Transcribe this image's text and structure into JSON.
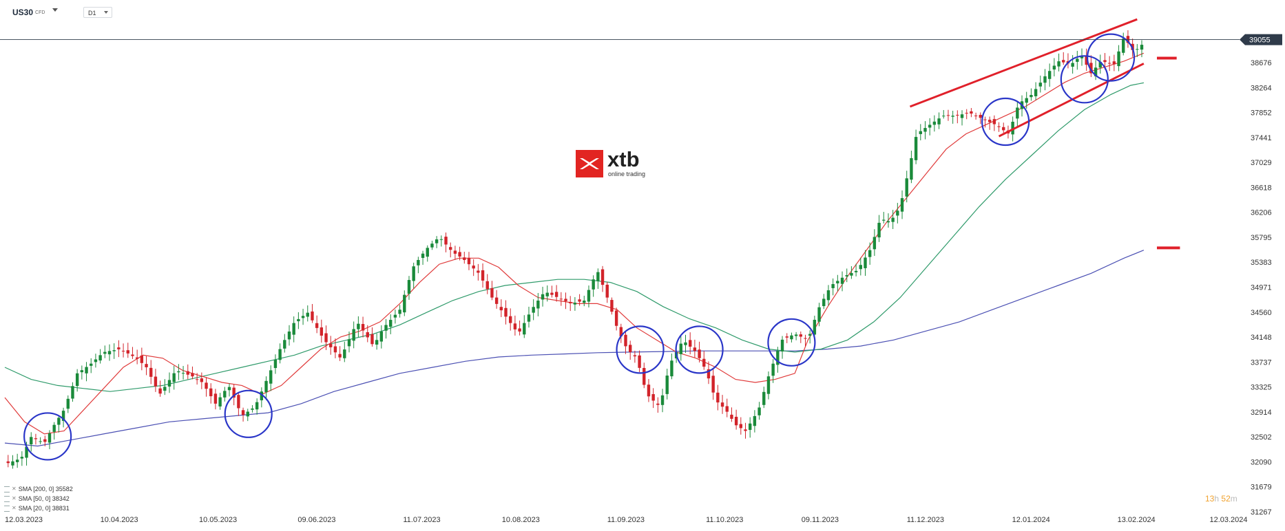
{
  "toolbar": {
    "symbol": "US30",
    "symbol_type": "CFD",
    "interval": "D1"
  },
  "logo": {
    "brand": "xtb",
    "tagline": "online trading"
  },
  "timer": {
    "hours": "13",
    "hours_unit": "h",
    "minutes": "52",
    "minutes_unit": "m"
  },
  "legend": [
    {
      "label": "SMA [200, 0] 35582"
    },
    {
      "label": "SMA [50, 0] 38342"
    },
    {
      "label": "SMA [20, 0] 38831"
    }
  ],
  "colors": {
    "bull": "#1a8a3a",
    "bear": "#d2232a",
    "sma200": "#4a4fb3",
    "sma50": "#2e9a6a",
    "sma20": "#e03a3a",
    "channel": "#e0202a",
    "circle": "#2a36c8",
    "price_tag_bg": "#2f3b4a",
    "price_line": "#2f3b4a"
  },
  "chart_data": {
    "type": "candlestick",
    "symbol": "US30",
    "timeframe": "D1",
    "current_price": 39055,
    "y_ticks": [
      38676,
      38264,
      37852,
      37441,
      37029,
      36618,
      36206,
      35795,
      35383,
      34971,
      34560,
      34148,
      33737,
      33325,
      32914,
      32502,
      32090,
      31679,
      31267
    ],
    "y_scale": {
      "low": 31267,
      "high": 38676,
      "step": 411.6
    },
    "x_ticks": [
      "12.03.2023",
      "10.04.2023",
      "10.05.2023",
      "09.06.2023",
      "11.07.2023",
      "10.08.2023",
      "11.09.2023",
      "11.10.2023",
      "09.11.2023",
      "11.12.2023",
      "12.01.2024",
      "13.02.2024",
      "12.03.2024"
    ],
    "x_tick_days": [
      0,
      29,
      59,
      89,
      121,
      151,
      183,
      213,
      242,
      274,
      306,
      338,
      366
    ],
    "close_path": [
      [
        0,
        32050
      ],
      [
        5,
        32150
      ],
      [
        8,
        32500
      ],
      [
        12,
        32400
      ],
      [
        15,
        32700
      ],
      [
        18,
        32950
      ],
      [
        22,
        33550
      ],
      [
        26,
        33700
      ],
      [
        30,
        33900
      ],
      [
        35,
        33950
      ],
      [
        40,
        33800
      ],
      [
        43,
        33650
      ],
      [
        47,
        33200
      ],
      [
        52,
        33600
      ],
      [
        57,
        33500
      ],
      [
        60,
        33400
      ],
      [
        64,
        33050
      ],
      [
        68,
        33350
      ],
      [
        72,
        32850
      ],
      [
        76,
        33000
      ],
      [
        80,
        33500
      ],
      [
        84,
        34000
      ],
      [
        88,
        34400
      ],
      [
        92,
        34550
      ],
      [
        97,
        34100
      ],
      [
        102,
        33800
      ],
      [
        107,
        34400
      ],
      [
        112,
        34000
      ],
      [
        115,
        34300
      ],
      [
        120,
        34600
      ],
      [
        124,
        35300
      ],
      [
        128,
        35600
      ],
      [
        132,
        35800
      ],
      [
        136,
        35550
      ],
      [
        139,
        35450
      ],
      [
        144,
        35200
      ],
      [
        148,
        34800
      ],
      [
        152,
        34500
      ],
      [
        156,
        34200
      ],
      [
        160,
        34600
      ],
      [
        164,
        34900
      ],
      [
        168,
        34800
      ],
      [
        172,
        34700
      ],
      [
        176,
        34750
      ],
      [
        180,
        35250
      ],
      [
        183,
        34800
      ],
      [
        186,
        34300
      ],
      [
        189,
        33950
      ],
      [
        192,
        33800
      ],
      [
        195,
        33200
      ],
      [
        199,
        33000
      ],
      [
        202,
        33700
      ],
      [
        206,
        34100
      ],
      [
        210,
        33900
      ],
      [
        213,
        33600
      ],
      [
        216,
        33100
      ],
      [
        219,
        32950
      ],
      [
        222,
        32700
      ],
      [
        225,
        32600
      ],
      [
        229,
        32950
      ],
      [
        232,
        33500
      ],
      [
        236,
        34100
      ],
      [
        240,
        34200
      ],
      [
        244,
        34100
      ],
      [
        247,
        34600
      ],
      [
        251,
        35000
      ],
      [
        255,
        35150
      ],
      [
        259,
        35250
      ],
      [
        263,
        35600
      ],
      [
        266,
        36100
      ],
      [
        269,
        36050
      ],
      [
        272,
        36300
      ],
      [
        275,
        37000
      ],
      [
        277,
        37500
      ],
      [
        281,
        37650
      ],
      [
        285,
        37800
      ],
      [
        289,
        37800
      ],
      [
        293,
        37850
      ],
      [
        297,
        37750
      ],
      [
        301,
        37650
      ],
      [
        305,
        37500
      ],
      [
        308,
        38000
      ],
      [
        312,
        38150
      ],
      [
        316,
        38450
      ],
      [
        320,
        38700
      ],
      [
        324,
        38650
      ],
      [
        327,
        38800
      ],
      [
        330,
        38500
      ],
      [
        333,
        38700
      ],
      [
        337,
        38650
      ],
      [
        340,
        39100
      ],
      [
        343,
        38850
      ],
      [
        346,
        39000
      ]
    ],
    "sma20": [
      [
        0,
        33150
      ],
      [
        6,
        32750
      ],
      [
        12,
        32550
      ],
      [
        18,
        32600
      ],
      [
        24,
        32950
      ],
      [
        30,
        33300
      ],
      [
        36,
        33650
      ],
      [
        42,
        33850
      ],
      [
        48,
        33800
      ],
      [
        54,
        33600
      ],
      [
        60,
        33500
      ],
      [
        66,
        33400
      ],
      [
        72,
        33350
      ],
      [
        78,
        33200
      ],
      [
        84,
        33350
      ],
      [
        90,
        33650
      ],
      [
        96,
        33950
      ],
      [
        102,
        34150
      ],
      [
        108,
        34250
      ],
      [
        114,
        34400
      ],
      [
        120,
        34700
      ],
      [
        126,
        35050
      ],
      [
        132,
        35350
      ],
      [
        138,
        35450
      ],
      [
        144,
        35450
      ],
      [
        150,
        35300
      ],
      [
        156,
        35000
      ],
      [
        162,
        34800
      ],
      [
        168,
        34750
      ],
      [
        174,
        34700
      ],
      [
        180,
        34700
      ],
      [
        186,
        34600
      ],
      [
        192,
        34300
      ],
      [
        198,
        34100
      ],
      [
        204,
        33900
      ],
      [
        210,
        33800
      ],
      [
        216,
        33650
      ],
      [
        222,
        33450
      ],
      [
        228,
        33400
      ],
      [
        234,
        33450
      ],
      [
        240,
        33550
      ],
      [
        244,
        34100
      ],
      [
        250,
        34650
      ],
      [
        256,
        35150
      ],
      [
        262,
        35600
      ],
      [
        268,
        36050
      ],
      [
        274,
        36450
      ],
      [
        280,
        36850
      ],
      [
        286,
        37250
      ],
      [
        292,
        37500
      ],
      [
        298,
        37650
      ],
      [
        304,
        37800
      ],
      [
        310,
        37950
      ],
      [
        316,
        38150
      ],
      [
        322,
        38350
      ],
      [
        328,
        38500
      ],
      [
        334,
        38600
      ],
      [
        340,
        38700
      ],
      [
        346,
        38831
      ]
    ],
    "sma50": [
      [
        0,
        33650
      ],
      [
        8,
        33450
      ],
      [
        16,
        33350
      ],
      [
        24,
        33300
      ],
      [
        32,
        33250
      ],
      [
        40,
        33300
      ],
      [
        48,
        33350
      ],
      [
        56,
        33450
      ],
      [
        64,
        33550
      ],
      [
        72,
        33650
      ],
      [
        80,
        33750
      ],
      [
        88,
        33850
      ],
      [
        96,
        34000
      ],
      [
        104,
        34100
      ],
      [
        112,
        34200
      ],
      [
        120,
        34350
      ],
      [
        128,
        34550
      ],
      [
        136,
        34750
      ],
      [
        144,
        34900
      ],
      [
        152,
        35000
      ],
      [
        160,
        35050
      ],
      [
        168,
        35100
      ],
      [
        176,
        35100
      ],
      [
        184,
        35050
      ],
      [
        192,
        34900
      ],
      [
        200,
        34650
      ],
      [
        208,
        34450
      ],
      [
        216,
        34300
      ],
      [
        224,
        34100
      ],
      [
        232,
        33950
      ],
      [
        240,
        33900
      ],
      [
        248,
        33950
      ],
      [
        256,
        34100
      ],
      [
        264,
        34400
      ],
      [
        272,
        34800
      ],
      [
        280,
        35300
      ],
      [
        288,
        35800
      ],
      [
        296,
        36300
      ],
      [
        304,
        36750
      ],
      [
        312,
        37150
      ],
      [
        320,
        37550
      ],
      [
        328,
        37900
      ],
      [
        336,
        38150
      ],
      [
        342,
        38300
      ],
      [
        346,
        38342
      ]
    ],
    "sma200": [
      [
        0,
        32400
      ],
      [
        10,
        32350
      ],
      [
        20,
        32450
      ],
      [
        30,
        32550
      ],
      [
        40,
        32650
      ],
      [
        50,
        32750
      ],
      [
        60,
        32800
      ],
      [
        70,
        32850
      ],
      [
        80,
        32900
      ],
      [
        90,
        33050
      ],
      [
        100,
        33250
      ],
      [
        110,
        33400
      ],
      [
        120,
        33550
      ],
      [
        130,
        33650
      ],
      [
        140,
        33750
      ],
      [
        150,
        33820
      ],
      [
        160,
        33850
      ],
      [
        170,
        33870
      ],
      [
        180,
        33890
      ],
      [
        190,
        33900
      ],
      [
        200,
        33910
      ],
      [
        210,
        33920
      ],
      [
        220,
        33920
      ],
      [
        230,
        33920
      ],
      [
        240,
        33920
      ],
      [
        250,
        33950
      ],
      [
        260,
        34000
      ],
      [
        270,
        34100
      ],
      [
        280,
        34250
      ],
      [
        290,
        34400
      ],
      [
        300,
        34600
      ],
      [
        310,
        34800
      ],
      [
        320,
        35000
      ],
      [
        330,
        35200
      ],
      [
        340,
        35450
      ],
      [
        346,
        35582
      ]
    ],
    "channel_upper": [
      [
        275,
        37950
      ],
      [
        344,
        39390
      ]
    ],
    "channel_lower": [
      [
        302,
        37460
      ],
      [
        346,
        38660
      ]
    ],
    "horizontal_levels": [
      {
        "day": [
          350,
          356
        ],
        "price": 38750
      },
      {
        "day": [
          350,
          357
        ],
        "price": 35620
      }
    ],
    "circled_areas": [
      {
        "day": 13,
        "price": 32510
      },
      {
        "day": 74,
        "price": 32880
      },
      {
        "day": 193,
        "price": 33940
      },
      {
        "day": 211,
        "price": 33940
      },
      {
        "day": 239,
        "price": 34060
      },
      {
        "day": 304,
        "price": 37700
      },
      {
        "day": 328,
        "price": 38400
      },
      {
        "day": 336,
        "price": 38760
      }
    ]
  }
}
